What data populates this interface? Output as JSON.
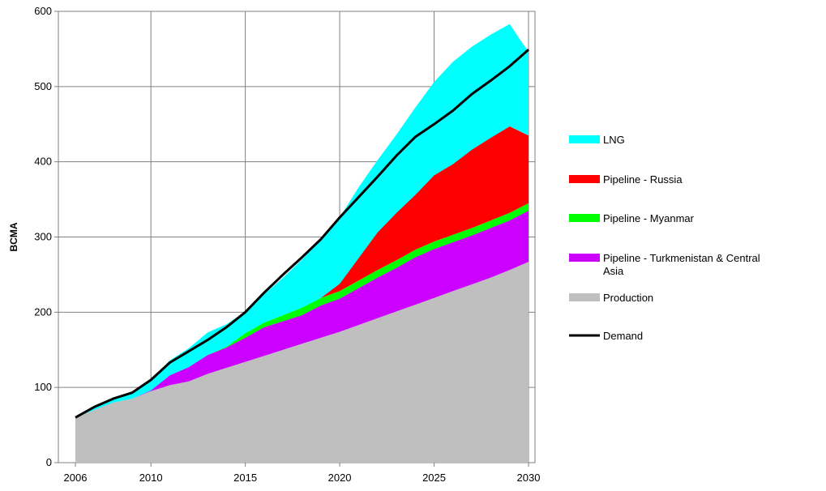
{
  "chart_data": {
    "type": "area",
    "title": "",
    "xlabel": "",
    "ylabel": "BCMA",
    "xlim": [
      2006,
      2030
    ],
    "ylim": [
      0,
      600
    ],
    "x_ticks": [
      "2006",
      "2010",
      "2015",
      "2020",
      "2025",
      "2030"
    ],
    "y_ticks": [
      "0",
      "100",
      "200",
      "300",
      "400",
      "500",
      "600"
    ],
    "grid": {
      "horizontal": true,
      "vertical": true
    },
    "legend_position": "right",
    "x": [
      2006,
      2007,
      2008,
      2009,
      2010,
      2011,
      2012,
      2013,
      2014,
      2015,
      2016,
      2017,
      2018,
      2019,
      2020,
      2021,
      2022,
      2023,
      2024,
      2025,
      2026,
      2027,
      2028,
      2029,
      2030
    ],
    "stack_series": [
      {
        "name": "Production",
        "color": "#bfbfbf",
        "values": [
          60,
          70,
          80,
          85,
          95,
          103,
          108,
          118,
          126,
          134,
          142,
          150,
          158,
          166,
          174,
          183,
          192,
          201,
          210,
          219,
          228,
          237,
          246,
          256,
          267
        ]
      },
      {
        "name": "Pipeline - Turkmenistan & Central Asia",
        "color": "#cc00ff",
        "values": [
          0,
          0,
          0,
          0,
          1,
          13,
          19,
          25,
          27,
          32,
          38,
          38,
          38,
          43,
          44,
          49,
          54,
          58,
          63,
          65,
          65,
          65,
          66,
          66,
          68
        ]
      },
      {
        "name": "Pipeline - Myanmar",
        "color": "#00ff00",
        "values": [
          0,
          0,
          0,
          0,
          0,
          0,
          0,
          0,
          1,
          6,
          6,
          8,
          10,
          10,
          10,
          10,
          10,
          10,
          10,
          10,
          10,
          10,
          10,
          10,
          10
        ]
      },
      {
        "name": "Pipeline - Russia",
        "color": "#ff0000",
        "values": [
          0,
          0,
          0,
          0,
          0,
          0,
          0,
          0,
          0,
          0,
          0,
          0,
          0,
          0,
          10,
          30,
          50,
          63,
          73,
          88,
          94,
          104,
          110,
          115,
          90
        ]
      },
      {
        "name": "LNG",
        "color": "#00ffff",
        "values": [
          0,
          3,
          5,
          8,
          14,
          20,
          25,
          30,
          30,
          29,
          38,
          50,
          64,
          78,
          88,
          94,
          96,
          104,
          116,
          124,
          136,
          137,
          137,
          136,
          111
        ]
      }
    ],
    "line_series": [
      {
        "name": "Demand",
        "color": "#000000",
        "values": [
          60,
          74,
          85,
          93,
          110,
          133,
          148,
          163,
          180,
          200,
          226,
          250,
          273,
          297,
          326,
          353,
          380,
          408,
          433,
          450,
          468,
          490,
          508,
          527,
          549
        ]
      }
    ],
    "legend_order": [
      "LNG",
      "Pipeline - Russia",
      "Pipeline - Myanmar",
      "Pipeline - Turkmenistan & Central Asia",
      "Production",
      "Demand"
    ]
  }
}
